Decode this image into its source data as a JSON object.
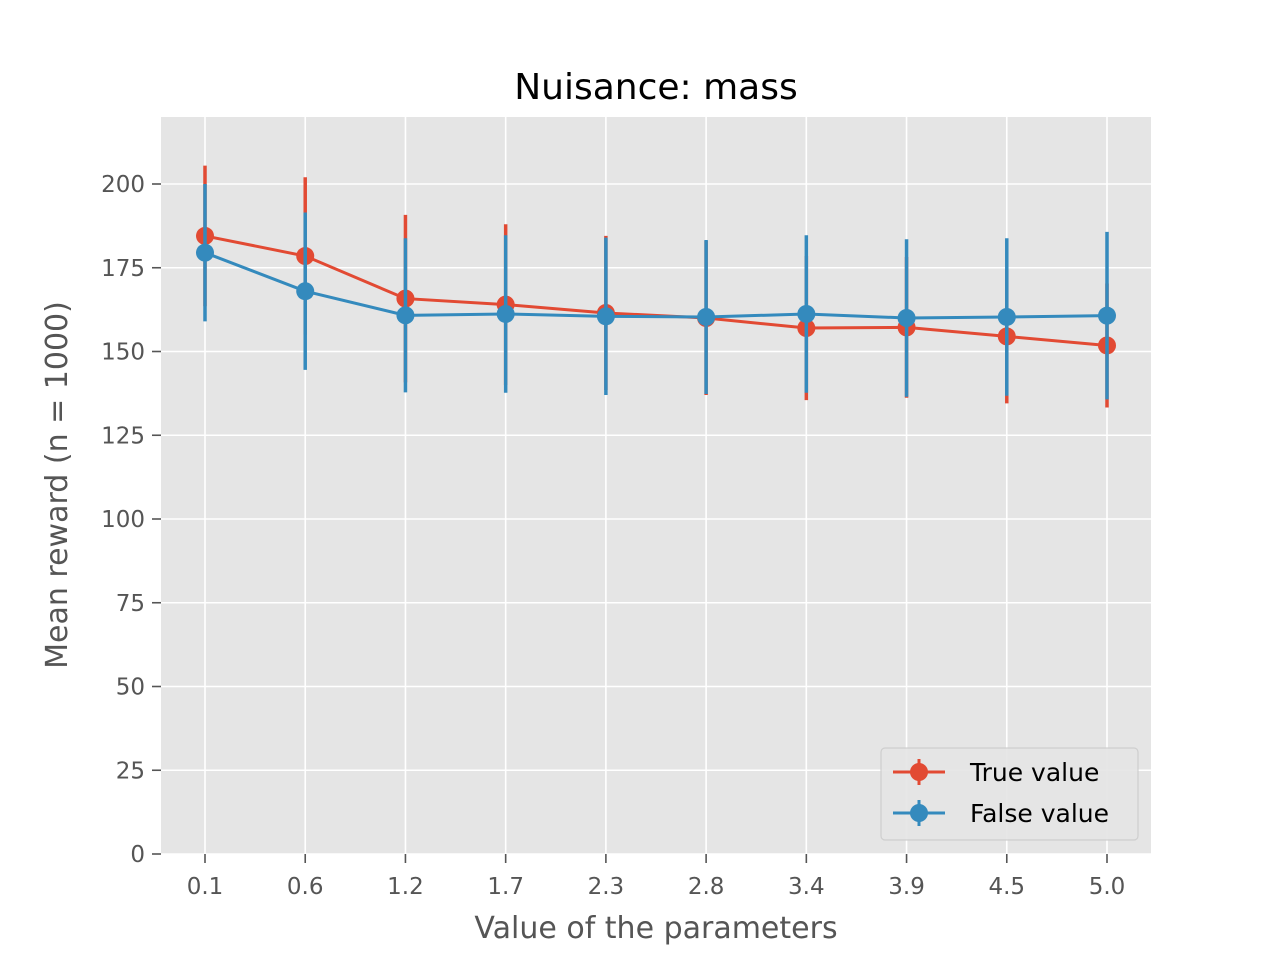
{
  "chart_data": {
    "type": "line",
    "title": "Nuisance: mass",
    "xlabel": "Value of the parameters",
    "ylabel": "Mean reward (n = 1000)",
    "categories": [
      "0.1",
      "0.6",
      "1.2",
      "1.7",
      "2.3",
      "2.8",
      "3.4",
      "3.9",
      "4.5",
      "5.0"
    ],
    "ylim": [
      0,
      220
    ],
    "yticks": [
      0,
      25,
      50,
      75,
      100,
      125,
      150,
      175,
      200
    ],
    "grid": true,
    "legend_position": "lower-right",
    "error_bars": true,
    "series": [
      {
        "name": "True value",
        "color": "#e24a33",
        "values": [
          184.5,
          178.5,
          165.8,
          164.0,
          161.5,
          160.0,
          157.0,
          157.2,
          154.5,
          151.8
        ],
        "errors": [
          21.0,
          23.5,
          25.0,
          24.0,
          23.0,
          23.0,
          21.5,
          21.0,
          20.0,
          18.5
        ]
      },
      {
        "name": "False value",
        "color": "#348abd",
        "values": [
          179.5,
          168.0,
          160.8,
          161.2,
          160.5,
          160.3,
          161.2,
          160.0,
          160.3,
          160.7
        ],
        "errors": [
          20.5,
          23.5,
          23.0,
          23.5,
          23.5,
          23.0,
          23.5,
          23.5,
          23.5,
          25.0
        ]
      }
    ]
  }
}
